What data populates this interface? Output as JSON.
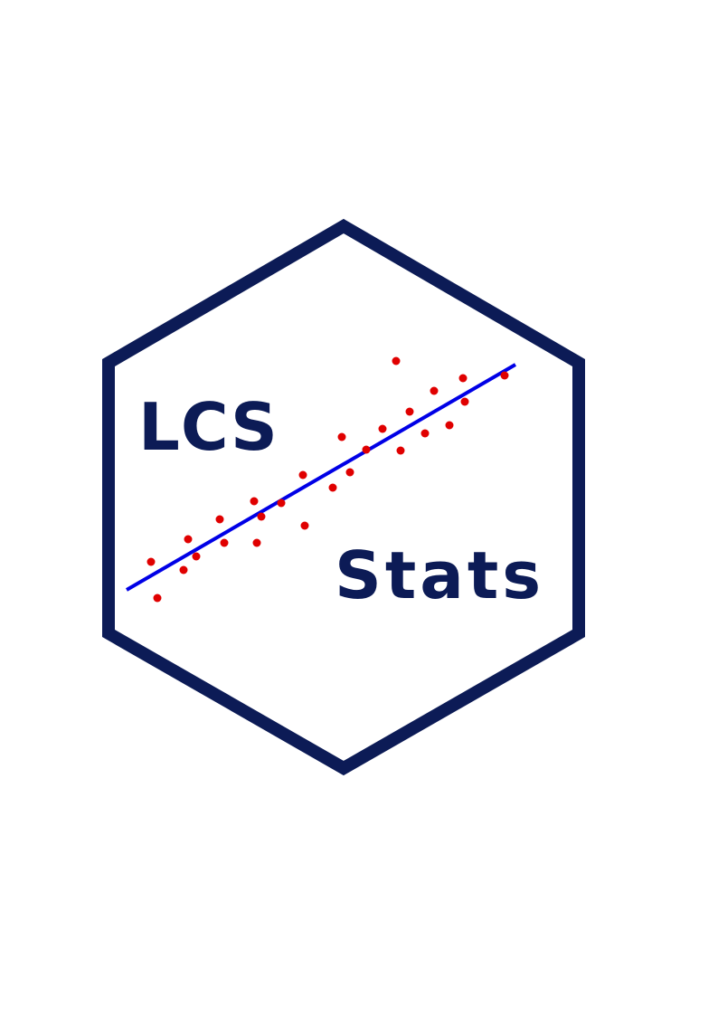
{
  "logo": {
    "word_top": "LCS",
    "word_bottom": "Stats",
    "colors": {
      "frame": "#0c1b56",
      "text": "#0c1b56",
      "points": "#e00000",
      "trend_line": "#0000e6",
      "background": "#ffffff"
    },
    "graphic": "scatter-plot-with-fitted-line"
  }
}
